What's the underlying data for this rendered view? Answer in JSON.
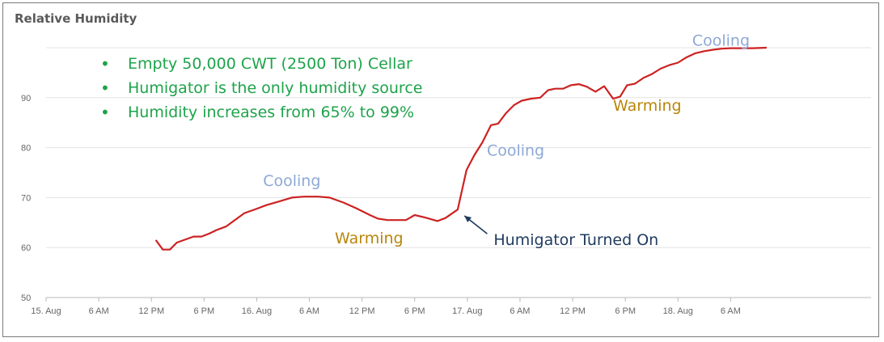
{
  "title": "Relative Humidity",
  "notes": [
    "Empty 50,000 CWT (2500 Ton) Cellar",
    "Humigator is the only humidity source",
    "Humidity increases from 65% to 99%"
  ],
  "colors": {
    "line": "#cc2222",
    "cooling": "#8ea8d6",
    "warming": "#b8860b",
    "arrow": "#1f3a5f",
    "notes": "#1ea34a",
    "grid": "#e3e3e3"
  },
  "chart_data": {
    "type": "line",
    "title": "Relative Humidity",
    "xlabel": "",
    "ylabel": "",
    "x_unit": "hours since 15. Aug 00:00",
    "xlim": [
      0,
      94
    ],
    "ylim": [
      50,
      100
    ],
    "yticks": [
      50,
      60,
      70,
      80,
      90
    ],
    "xticks": [
      {
        "t": 0,
        "label": "15. Aug"
      },
      {
        "t": 6,
        "label": "6 AM"
      },
      {
        "t": 12,
        "label": "12 PM"
      },
      {
        "t": 18,
        "label": "6 PM"
      },
      {
        "t": 24,
        "label": "16. Aug"
      },
      {
        "t": 30,
        "label": "6 AM"
      },
      {
        "t": 36,
        "label": "12 PM"
      },
      {
        "t": 42,
        "label": "6 PM"
      },
      {
        "t": 48,
        "label": "17. Aug"
      },
      {
        "t": 54,
        "label": "6 AM"
      },
      {
        "t": 60,
        "label": "12 PM"
      },
      {
        "t": 66,
        "label": "6 PM"
      },
      {
        "t": 72,
        "label": "18. Aug"
      },
      {
        "t": 78,
        "label": "6 AM"
      }
    ],
    "grid": true,
    "series": [
      {
        "name": "",
        "points": [
          [
            12.5,
            61.5
          ],
          [
            13.3,
            59.6
          ],
          [
            14.1,
            59.6
          ],
          [
            14.9,
            61.0
          ],
          [
            15.7,
            61.5
          ],
          [
            16.8,
            62.2
          ],
          [
            17.7,
            62.2
          ],
          [
            18.6,
            62.8
          ],
          [
            19.4,
            63.5
          ],
          [
            20.5,
            64.2
          ],
          [
            21.5,
            65.5
          ],
          [
            22.6,
            66.9
          ],
          [
            23.9,
            67.7
          ],
          [
            25.1,
            68.5
          ],
          [
            26.5,
            69.2
          ],
          [
            28.0,
            70.0
          ],
          [
            29.4,
            70.2
          ],
          [
            31.0,
            70.2
          ],
          [
            32.3,
            70.0
          ],
          [
            33.9,
            69.0
          ],
          [
            35.3,
            67.9
          ],
          [
            36.9,
            66.5
          ],
          [
            37.8,
            65.8
          ],
          [
            38.9,
            65.5
          ],
          [
            40.0,
            65.5
          ],
          [
            41.0,
            65.5
          ],
          [
            42.0,
            66.5
          ],
          [
            43.2,
            66.0
          ],
          [
            44.6,
            65.3
          ],
          [
            45.5,
            65.9
          ],
          [
            46.9,
            67.6
          ],
          [
            47.9,
            75.5
          ],
          [
            48.8,
            78.5
          ],
          [
            49.7,
            81.0
          ],
          [
            50.7,
            84.5
          ],
          [
            51.5,
            84.8
          ],
          [
            52.4,
            86.9
          ],
          [
            53.3,
            88.5
          ],
          [
            54.2,
            89.4
          ],
          [
            55.3,
            89.8
          ],
          [
            56.3,
            90.0
          ],
          [
            57.2,
            91.5
          ],
          [
            58.0,
            91.8
          ],
          [
            58.9,
            91.8
          ],
          [
            59.8,
            92.5
          ],
          [
            60.7,
            92.7
          ],
          [
            61.6,
            92.2
          ],
          [
            62.6,
            91.2
          ],
          [
            63.6,
            92.3
          ],
          [
            64.6,
            89.8
          ],
          [
            65.4,
            90.2
          ],
          [
            66.2,
            92.5
          ],
          [
            67.1,
            92.8
          ],
          [
            68.1,
            94.0
          ],
          [
            69.0,
            94.7
          ],
          [
            70.0,
            95.8
          ],
          [
            71.0,
            96.5
          ],
          [
            72.0,
            97.0
          ],
          [
            73.0,
            98.1
          ],
          [
            74.0,
            98.9
          ],
          [
            75.0,
            99.3
          ],
          [
            76.0,
            99.6
          ],
          [
            77.0,
            99.8
          ],
          [
            78.0,
            99.9
          ],
          [
            79.0,
            99.9
          ],
          [
            80.5,
            99.9
          ],
          [
            82.1,
            100.0
          ]
        ]
      }
    ],
    "annotations": [
      {
        "text": "Cooling",
        "type": "cooling",
        "t": 28.0,
        "value": 73.5
      },
      {
        "text": "Warming",
        "type": "warming",
        "t": 36.8,
        "value": 62.0
      },
      {
        "text": "Cooling",
        "type": "cooling",
        "t": 53.5,
        "value": 79.5
      },
      {
        "text": "Warming",
        "type": "warming",
        "t": 68.5,
        "value": 88.5
      },
      {
        "text": "Cooling",
        "type": "cooling",
        "t": 76.9,
        "value": 101.5
      },
      {
        "text": "Humigator Turned On",
        "type": "arrow",
        "t": 51.0,
        "value": 61.8,
        "target_t": 47.3,
        "target_value": 67.0
      }
    ]
  }
}
